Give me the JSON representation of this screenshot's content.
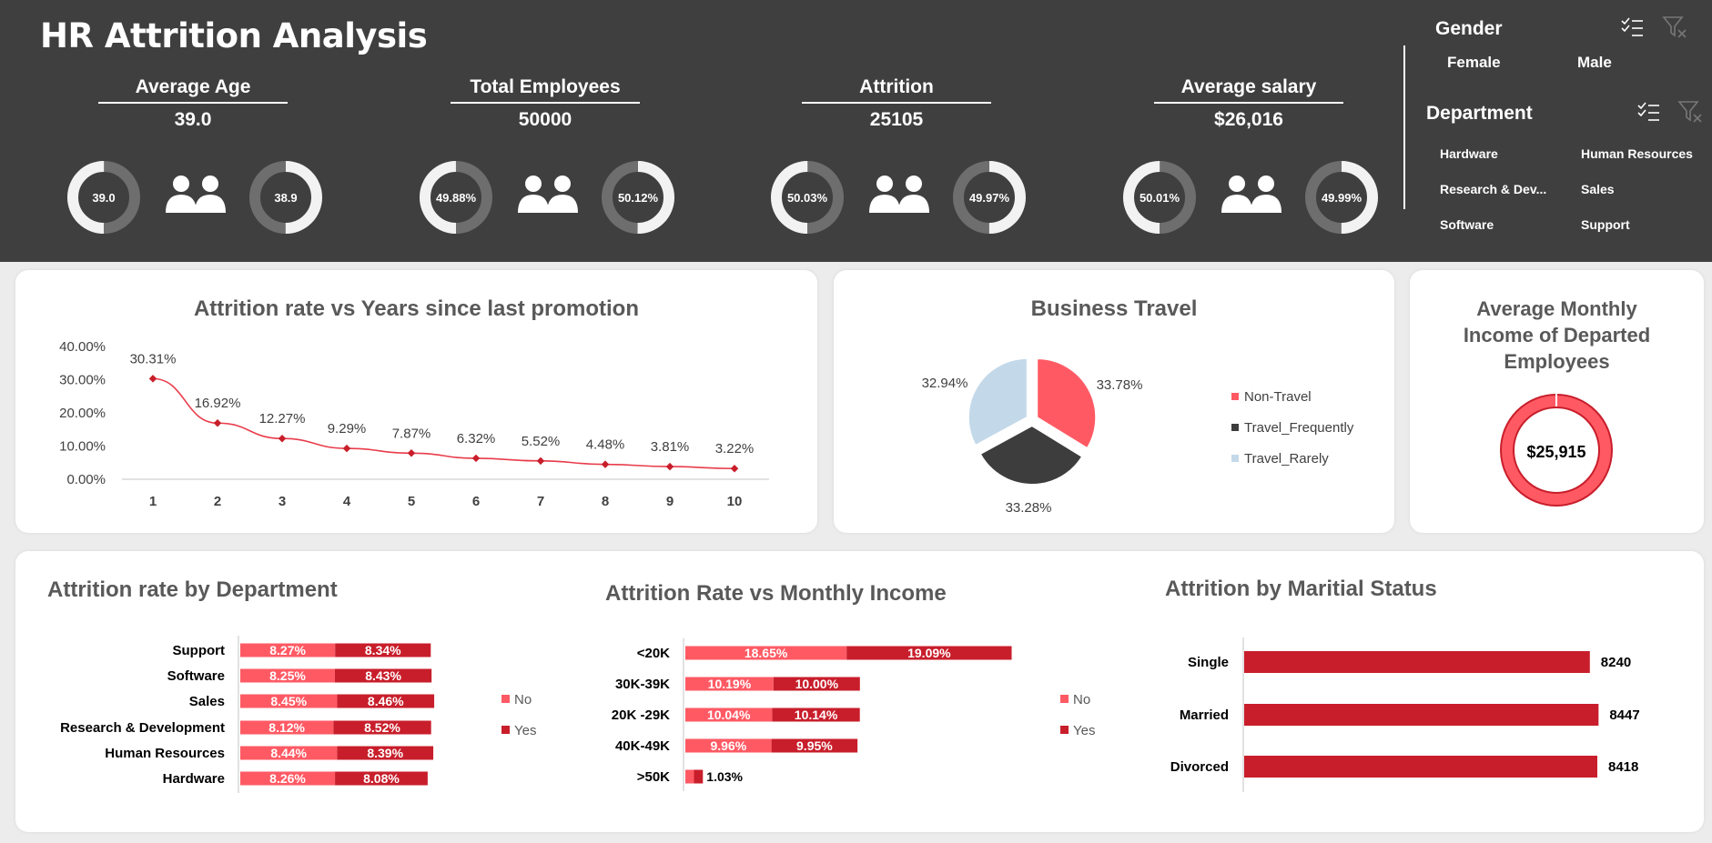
{
  "header": {
    "title": "HR Attrition Analysis"
  },
  "kpis": [
    {
      "label": "Average Age",
      "value": "39.0",
      "left_donut": "39.0",
      "right_donut": "38.9",
      "left_pct": 0.5,
      "right_pct": 0.5
    },
    {
      "label": "Total Employees",
      "value": "50000",
      "left_donut": "49.88%",
      "right_donut": "50.12%",
      "left_pct": 0.4988,
      "right_pct": 0.5012
    },
    {
      "label": "Attrition",
      "value": "25105",
      "left_donut": "50.03%",
      "right_donut": "49.97%",
      "left_pct": 0.5003,
      "right_pct": 0.4997
    },
    {
      "label": "Average salary",
      "value": "$26,016",
      "left_donut": "50.01%",
      "right_donut": "49.99%",
      "left_pct": 0.5001,
      "right_pct": 0.4999
    }
  ],
  "slicers": {
    "gender": {
      "title": "Gender",
      "items": [
        "Female",
        "Male"
      ]
    },
    "department": {
      "title": "Department",
      "items": [
        "Hardware",
        "Human Resources",
        "Research & Dev...",
        "Sales",
        "Software",
        "Support"
      ]
    }
  },
  "promotion_chart": {
    "title": "Attrition rate vs  Years since last promotion",
    "chart_data": {
      "type": "line",
      "x": [
        1,
        2,
        3,
        4,
        5,
        6,
        7,
        8,
        9,
        10
      ],
      "values": [
        30.31,
        16.92,
        12.27,
        9.29,
        7.87,
        6.32,
        5.52,
        4.48,
        3.81,
        3.22
      ],
      "labels": [
        "30.31%",
        "16.92%",
        "12.27%",
        "9.29%",
        "7.87%",
        "6.32%",
        "5.52%",
        "4.48%",
        "3.81%",
        "3.22%"
      ],
      "y_ticks": [
        "0.00%",
        "10.00%",
        "20.00%",
        "30.00%",
        "40.00%"
      ],
      "ylim": [
        0,
        40
      ],
      "color": "#e83c4a"
    }
  },
  "travel_chart": {
    "title": "Business Travel",
    "chart_data": {
      "type": "pie",
      "categories": [
        "Non-Travel",
        "Travel_Frequently",
        "Travel_Rarely"
      ],
      "values": [
        33.78,
        33.28,
        32.94
      ],
      "labels": [
        "33.78%",
        "33.28%",
        "32.94%"
      ],
      "colors": [
        "#ff5a64",
        "#3d3d3d",
        "#c3d9ea"
      ],
      "legend_position": "right"
    }
  },
  "income_card": {
    "title_lines": [
      "Average Monthly",
      "Income of Departed",
      "Employees"
    ],
    "value": "$25,915"
  },
  "dept_chart": {
    "title": "Attrition rate by Department",
    "chart_data": {
      "type": "bar",
      "categories": [
        "Support",
        "Software",
        "Sales",
        "Research & Development",
        "Human Resources",
        "Hardware"
      ],
      "series": [
        {
          "name": "No",
          "values": [
            8.27,
            8.25,
            8.45,
            8.12,
            8.44,
            8.26
          ],
          "labels": [
            "8.27%",
            "8.25%",
            "8.45%",
            "8.12%",
            "8.44%",
            "8.26%"
          ]
        },
        {
          "name": "Yes",
          "values": [
            8.34,
            8.43,
            8.46,
            8.52,
            8.39,
            8.08
          ],
          "labels": [
            "8.34%",
            "8.43%",
            "8.46%",
            "8.52%",
            "8.39%",
            "8.08%"
          ]
        }
      ],
      "colors": {
        "No": "#ff5a64",
        "Yes": "#c81e2b"
      },
      "stacked": true
    }
  },
  "income_chart": {
    "title": "Attrition Rate vs Monthly Income",
    "chart_data": {
      "type": "bar",
      "categories": [
        "<20K",
        "30K-39K",
        "20K -29K",
        "40K-49K",
        ">50K"
      ],
      "series": [
        {
          "name": "No",
          "values": [
            18.65,
            10.19,
            10.04,
            9.96,
            1.0
          ],
          "labels": [
            "18.65%",
            "10.19%",
            "10.04%",
            "9.96%",
            ""
          ]
        },
        {
          "name": "Yes",
          "values": [
            19.09,
            10.0,
            10.14,
            9.95,
            1.03
          ],
          "labels": [
            "19.09%",
            "10.00%",
            "10.14%",
            "9.95%",
            "1.03%"
          ]
        }
      ],
      "colors": {
        "No": "#ff5a64",
        "Yes": "#c81e2b"
      },
      "stacked": true
    }
  },
  "marital_chart": {
    "title": "Attrition by Maritial Status",
    "chart_data": {
      "type": "bar",
      "categories": [
        "Single",
        "Married",
        "Divorced"
      ],
      "values": [
        8240,
        8447,
        8418
      ],
      "labels": [
        "8240",
        "8447",
        "8418"
      ],
      "xlim": [
        0,
        8700
      ],
      "color": "#c81e2b"
    }
  }
}
